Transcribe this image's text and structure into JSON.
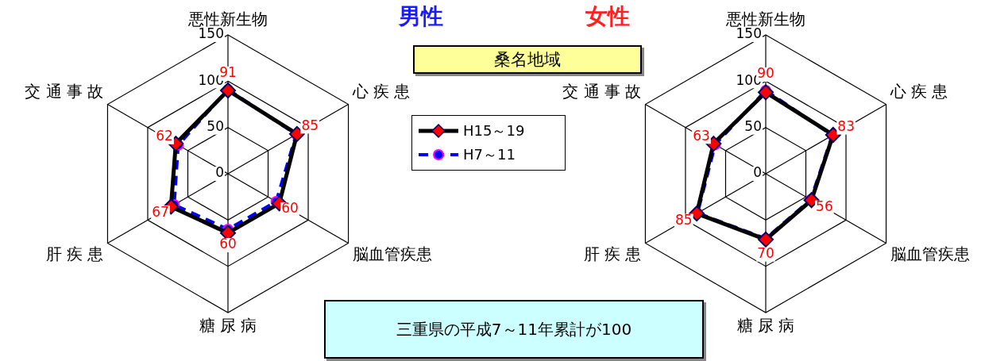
{
  "chart_data": [
    {
      "type": "radar",
      "title": "男性",
      "categories": [
        "悪性新生物",
        "心 疾 患",
        "脳血管疾患",
        "糖 尿 病",
        "肝 疾 患",
        "交 通 事 故"
      ],
      "ylim": [
        0,
        150
      ],
      "yticks": [
        0,
        50,
        100,
        150
      ],
      "legend": "right",
      "series": [
        {
          "name": "H15～19",
          "color": "#000000",
          "marker": "diamond",
          "line_style": "solid",
          "values": [
            90,
            86,
            64,
            64,
            71,
            65
          ]
        },
        {
          "name": "H7～11",
          "color": "#0000ff",
          "marker": "circle",
          "line_style": "dashed",
          "values": [
            91,
            85,
            60,
            60,
            67,
            62
          ],
          "value_labels": [
            "91",
            "85",
            "60",
            "60",
            "67",
            "62"
          ]
        }
      ]
    },
    {
      "type": "radar",
      "title": "女性",
      "categories": [
        "悪性新生物",
        "心 疾 患",
        "脳血管疾患",
        "糖 尿 病",
        "肝 疾 患",
        "交 通 事 故"
      ],
      "ylim": [
        0,
        150
      ],
      "yticks": [
        0,
        50,
        100,
        150
      ],
      "series": [
        {
          "color": "#000000",
          "marker": "diamond",
          "line_style": "solid",
          "values": [
            88,
            84,
            57,
            71,
            86,
            65
          ]
        },
        {
          "color": "#0000ff",
          "marker": "circle",
          "line_style": "dashed",
          "values": [
            90,
            83,
            56,
            70,
            85,
            63
          ],
          "value_labels": [
            "90",
            "83",
            "56",
            "70",
            "85",
            "63"
          ]
        }
      ]
    },
    {
      "type": "other",
      "title": "桑名地域",
      "annotations": [
        "三重県の平成7～11年累計が100"
      ]
    }
  ]
}
